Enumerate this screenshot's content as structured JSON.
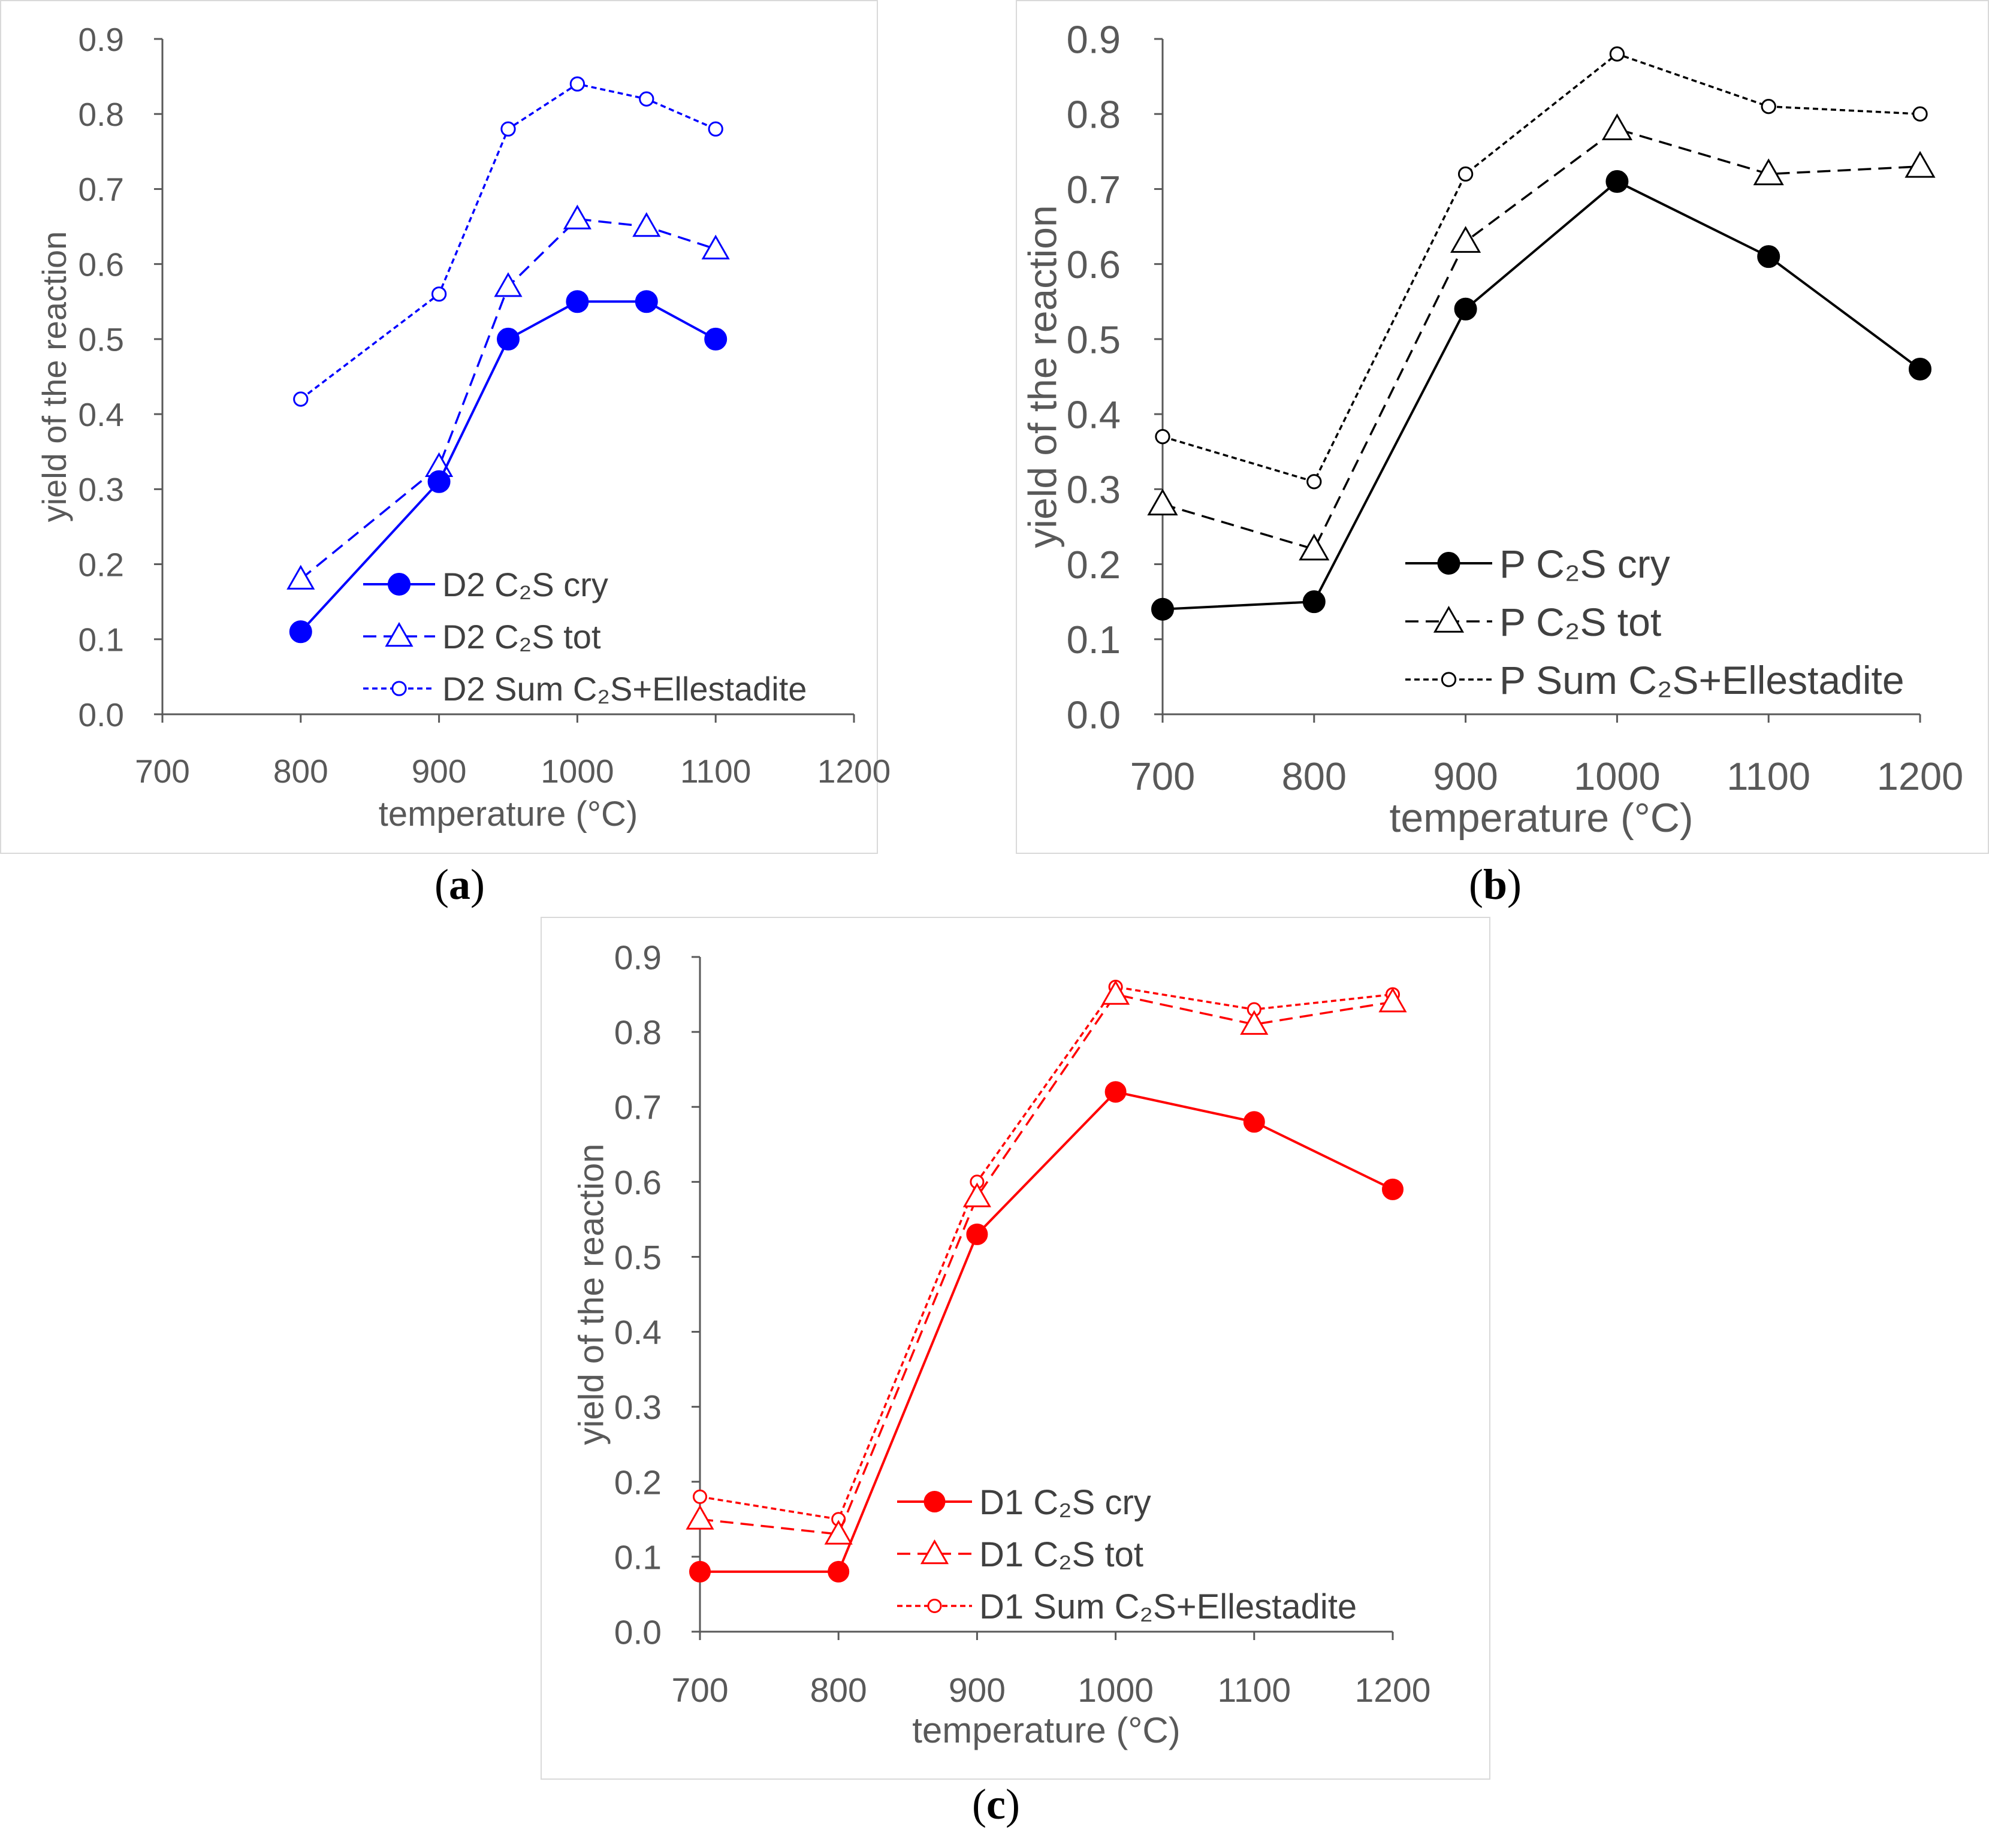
{
  "chart_data": [
    {
      "type": "line",
      "caption_prefix": "(",
      "caption_letter": "a",
      "caption_suffix": ")",
      "xlabel": "temperature (°C)",
      "ylabel": "yield of the reaction",
      "xlim": [
        700,
        1200
      ],
      "ylim": [
        0.0,
        0.9
      ],
      "xticks": [
        "700",
        "800",
        "900",
        "1000",
        "1100",
        "1200"
      ],
      "yticks": [
        "0.0",
        "0.1",
        "0.2",
        "0.3",
        "0.4",
        "0.5",
        "0.6",
        "0.7",
        "0.8",
        "0.9"
      ],
      "legend_position": "bottom-right",
      "color": "#0000ff",
      "series": [
        {
          "name": "D2 C₂S cry",
          "style": "solid",
          "marker": "filled-circle",
          "x": [
            800,
            900,
            950,
            1000,
            1050,
            1100
          ],
          "y": [
            0.11,
            0.31,
            0.5,
            0.55,
            0.55,
            0.5
          ]
        },
        {
          "name": "D2 C₂S tot",
          "style": "dashed",
          "marker": "open-triangle",
          "x": [
            800,
            900,
            950,
            1000,
            1050,
            1100
          ],
          "y": [
            0.18,
            0.33,
            0.57,
            0.66,
            0.65,
            0.62
          ]
        },
        {
          "name": "D2 Sum C₂S+Ellestadite",
          "style": "dotted",
          "marker": "open-circle",
          "x": [
            800,
            900,
            950,
            1000,
            1050,
            1100
          ],
          "y": [
            0.42,
            0.56,
            0.78,
            0.84,
            0.82,
            0.78
          ]
        }
      ]
    },
    {
      "type": "line",
      "caption_prefix": "(",
      "caption_letter": "b",
      "caption_suffix": ")",
      "xlabel": "temperature (°C)",
      "ylabel": "yield of the reaction",
      "xlim": [
        700,
        1200
      ],
      "ylim": [
        0.0,
        0.9
      ],
      "xticks": [
        "700",
        "800",
        "900",
        "1000",
        "1100",
        "1200"
      ],
      "yticks": [
        "0.0",
        "0.1",
        "0.2",
        "0.3",
        "0.4",
        "0.5",
        "0.6",
        "0.7",
        "0.8",
        "0.9"
      ],
      "legend_position": "bottom-right",
      "color": "#000000",
      "series": [
        {
          "name": "P C₂S cry",
          "style": "solid",
          "marker": "filled-circle",
          "x": [
            700,
            800,
            900,
            1000,
            1100,
            1200
          ],
          "y": [
            0.14,
            0.15,
            0.54,
            0.71,
            0.61,
            0.46
          ]
        },
        {
          "name": "P C₂S tot",
          "style": "dashed",
          "marker": "open-triangle",
          "x": [
            700,
            800,
            900,
            1000,
            1100,
            1200
          ],
          "y": [
            0.28,
            0.22,
            0.63,
            0.78,
            0.72,
            0.73
          ]
        },
        {
          "name": "P Sum C₂S+Ellestadite",
          "style": "dotted",
          "marker": "open-circle",
          "x": [
            700,
            800,
            900,
            1000,
            1100,
            1200
          ],
          "y": [
            0.37,
            0.31,
            0.72,
            0.88,
            0.81,
            0.8
          ]
        }
      ]
    },
    {
      "type": "line",
      "caption_prefix": "(",
      "caption_letter": "c",
      "caption_suffix": ")",
      "xlabel": "temperature (°C)",
      "ylabel": "yield of the reaction",
      "xlim": [
        700,
        1200
      ],
      "ylim": [
        0.0,
        0.9
      ],
      "xticks": [
        "700",
        "800",
        "900",
        "1000",
        "1100",
        "1200"
      ],
      "yticks": [
        "0.0",
        "0.1",
        "0.2",
        "0.3",
        "0.4",
        "0.5",
        "0.6",
        "0.7",
        "0.8",
        "0.9"
      ],
      "legend_position": "bottom-left",
      "color": "#ff0000",
      "series": [
        {
          "name": "D1 C₂S cry",
          "style": "solid",
          "marker": "filled-circle",
          "x": [
            700,
            800,
            900,
            1000,
            1100,
            1200
          ],
          "y": [
            0.08,
            0.08,
            0.53,
            0.72,
            0.68,
            0.59
          ]
        },
        {
          "name": "D1 C₂S tot",
          "style": "dashed",
          "marker": "open-triangle",
          "x": [
            700,
            800,
            900,
            1000,
            1100,
            1200
          ],
          "y": [
            0.15,
            0.13,
            0.58,
            0.85,
            0.81,
            0.84
          ]
        },
        {
          "name": "D1 Sum C₂S+Ellestadite",
          "style": "dotted",
          "marker": "open-circle",
          "x": [
            700,
            800,
            900,
            1000,
            1100,
            1200
          ],
          "y": [
            0.18,
            0.15,
            0.6,
            0.86,
            0.83,
            0.85
          ]
        }
      ]
    }
  ]
}
